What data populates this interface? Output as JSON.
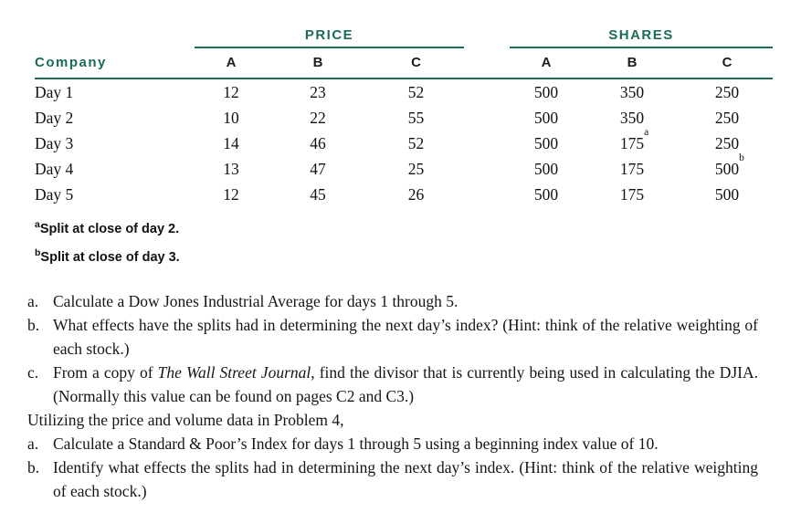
{
  "colors": {
    "accent": "#1A6B57",
    "text": "#111111"
  },
  "table": {
    "group_headers": {
      "price": "PRICE",
      "shares": "SHARES"
    },
    "company_header": "Company",
    "col_headers": [
      "A",
      "B",
      "C",
      "A",
      "B",
      "C"
    ],
    "rows": [
      {
        "company": "Day 1",
        "values": [
          "12",
          "23",
          "52",
          "500",
          "350",
          "250"
        ],
        "sups": [
          "",
          "",
          "",
          "",
          "",
          ""
        ]
      },
      {
        "company": "Day 2",
        "values": [
          "10",
          "22",
          "55",
          "500",
          "350",
          "250"
        ],
        "sups": [
          "",
          "",
          "",
          "",
          "",
          ""
        ]
      },
      {
        "company": "Day 3",
        "values": [
          "14",
          "46",
          "52",
          "500",
          "175",
          "250"
        ],
        "sups": [
          "",
          "",
          "",
          "",
          "a",
          ""
        ]
      },
      {
        "company": "Day 4",
        "values": [
          "13",
          "47",
          "25",
          "500",
          "175",
          "500"
        ],
        "sups": [
          "",
          "",
          "",
          "",
          "",
          "b"
        ]
      },
      {
        "company": "Day 5",
        "values": [
          "12",
          "45",
          "26",
          "500",
          "175",
          "500"
        ],
        "sups": [
          "",
          "",
          "",
          "",
          "",
          ""
        ]
      }
    ],
    "footnotes": [
      {
        "sup": "a",
        "text": "Split at close of day 2."
      },
      {
        "sup": "b",
        "text": "Split at close of day 3."
      }
    ]
  },
  "problems": {
    "items": [
      {
        "marker": "a.",
        "text": "Calculate a Dow Jones Industrial Average for days 1 through 5."
      },
      {
        "marker": "b.",
        "text": "What effects have the splits had in determining the next day’s index? (Hint: think of the relative weighting of each stock.)"
      },
      {
        "marker": "c.",
        "pre": "From a copy of ",
        "italic": "The Wall Street Journal",
        "post": ", find the divisor that is currently being used in calculating the DJIA. (Normally this value can be found on pages C2 and C3.)"
      },
      {
        "marker": "",
        "text": "Utilizing the price and volume data in Problem 4,"
      },
      {
        "marker": "a.",
        "text": "Calculate a Standard & Poor’s Index for days 1 through 5 using a beginning index value of 10."
      },
      {
        "marker": "b.",
        "text": "Identify what effects the splits had in determining the next day’s index. (Hint: think of the relative weighting of each stock.)"
      }
    ]
  }
}
